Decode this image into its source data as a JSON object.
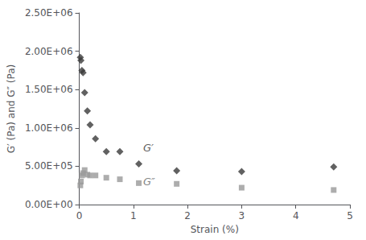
{
  "chart_data": {
    "type": "scatter",
    "xlabel": "Strain (%)",
    "ylabel": "G′ (Pa) and G″ (Pa)",
    "xlim": [
      0,
      5
    ],
    "xticks": [
      0,
      1,
      2,
      3,
      4,
      5
    ],
    "ylim": [
      0,
      2500000
    ],
    "yticks": [
      {
        "value": 0,
        "label": "0.00E+00"
      },
      {
        "value": 500000,
        "label": "5.00E+05"
      },
      {
        "value": 1000000,
        "label": "1.00E+06"
      },
      {
        "value": 1500000,
        "label": "1.50E+06"
      },
      {
        "value": 2000000,
        "label": "2.00E+06"
      },
      {
        "value": 2500000,
        "label": "2.50E+06"
      }
    ],
    "grid": false,
    "series": [
      {
        "color": "#3a3a3a",
        "marker": "diamond",
        "x": [
          0.02,
          0.03,
          0.05,
          0.07,
          0.1,
          0.15,
          0.2,
          0.3,
          0.5,
          0.75,
          1.1,
          1.8,
          3.0,
          4.7
        ],
        "values": [
          1920000,
          1880000,
          1750000,
          1720000,
          1460000,
          1220000,
          1040000,
          860000,
          690000,
          690000,
          530000,
          440000,
          430000,
          490000
        ]
      },
      {
        "color": "#999999",
        "marker": "square",
        "x": [
          0.02,
          0.03,
          0.05,
          0.07,
          0.1,
          0.15,
          0.2,
          0.3,
          0.5,
          0.75,
          1.1,
          1.8,
          3.0,
          4.7
        ],
        "values": [
          250000,
          300000,
          380000,
          410000,
          450000,
          390000,
          380000,
          380000,
          350000,
          330000,
          280000,
          270000,
          220000,
          190000
        ]
      }
    ],
    "annotations": [
      {
        "text": "G′",
        "x": 1.18,
        "y": 670000,
        "color": "#333333"
      },
      {
        "text": "G″",
        "x": 1.18,
        "y": 235000,
        "color": "#666666"
      }
    ]
  }
}
